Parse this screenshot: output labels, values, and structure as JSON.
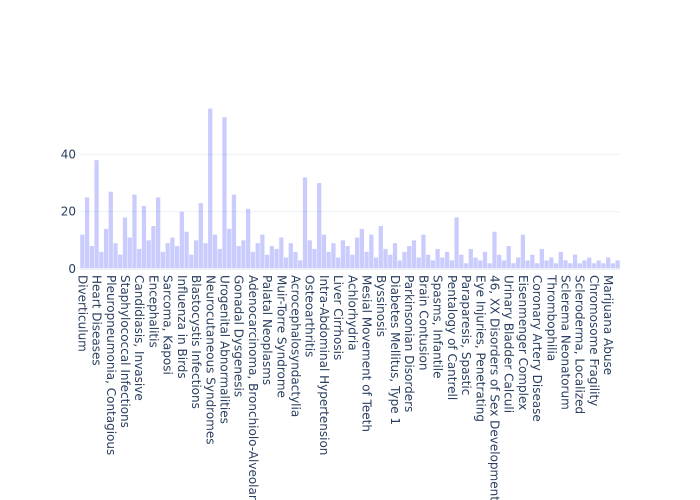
{
  "chart_data": {
    "type": "bar",
    "color": "#636efa",
    "opacity": 0.35,
    "grid": true,
    "ylim": [
      0,
      59
    ],
    "yticks": [
      0,
      20,
      40
    ],
    "categories": [
      "Diverticulum",
      null,
      null,
      "Heart Diseases",
      null,
      null,
      "Pleuropneumonia, Contagious",
      null,
      null,
      "Staphylococcal Infections",
      null,
      null,
      "Candidiasis, Invasive",
      null,
      null,
      "Encephalitis",
      null,
      null,
      "Sarcoma, Kaposi",
      null,
      null,
      "Influenza in Birds",
      null,
      null,
      "Blastocystis Infections",
      null,
      null,
      "Neurocutaneous Syndromes",
      null,
      null,
      "Urogenital Abnormalities",
      null,
      null,
      "Gonadal Dysgenesis",
      null,
      null,
      "Adenocarcinoma, Bronchiolo-Alveolar",
      null,
      null,
      "Palatal Neoplasms",
      null,
      null,
      "Muir-Torre Syndrome",
      null,
      null,
      "Acrocephalosyndactylia",
      null,
      null,
      "Osteoarthritis",
      null,
      null,
      "Intra-Abdominal Hypertension",
      null,
      null,
      "Liver Cirrhosis",
      null,
      null,
      "Achlorhydria",
      null,
      null,
      "Mesial Movement of Teeth",
      null,
      null,
      "Byssinosis",
      null,
      null,
      "Diabetes Mellitus, Type 1",
      null,
      null,
      "Parkinsonian Disorders",
      null,
      null,
      "Brain Contusion",
      null,
      null,
      "Spasms, Infantile",
      null,
      null,
      "Pentalogy of Cantrell",
      null,
      null,
      "Paraparesis, Spastic",
      null,
      null,
      "Eye Injuries, Penetrating",
      null,
      null,
      "46, XX Disorders of Sex Development",
      null,
      null,
      "Urinary Bladder Calculi",
      null,
      null,
      "Eisenmenger Complex",
      null,
      null,
      "Coronary Artery Disease",
      null,
      null,
      "Thrombophilia",
      null,
      null,
      "Sclerema Neonatorum",
      null,
      null,
      "Scleroderma, Localized",
      null,
      null,
      "Chromosome Fragility",
      null,
      null,
      "Marijuana Abuse",
      null,
      null
    ],
    "values": [
      12,
      25,
      8,
      38,
      6,
      14,
      27,
      9,
      5,
      18,
      11,
      26,
      7,
      22,
      10,
      15,
      25,
      6,
      9,
      11,
      8,
      20,
      13,
      5,
      10,
      23,
      9,
      56,
      12,
      7,
      53,
      14,
      26,
      8,
      10,
      21,
      6,
      9,
      12,
      5,
      8,
      7,
      11,
      4,
      9,
      6,
      3,
      32,
      10,
      7,
      30,
      12,
      6,
      9,
      4,
      10,
      8,
      5,
      11,
      14,
      6,
      12,
      4,
      15,
      7,
      5,
      9,
      3,
      6,
      8,
      10,
      4,
      12,
      5,
      3,
      7,
      4,
      6,
      3,
      18,
      5,
      2,
      7,
      4,
      3,
      6,
      2,
      13,
      5,
      3,
      8,
      2,
      4,
      12,
      3,
      5,
      2,
      7,
      3,
      4,
      2,
      6,
      3,
      2,
      5,
      2,
      3,
      4,
      2,
      3,
      2,
      4,
      2,
      3
    ]
  }
}
